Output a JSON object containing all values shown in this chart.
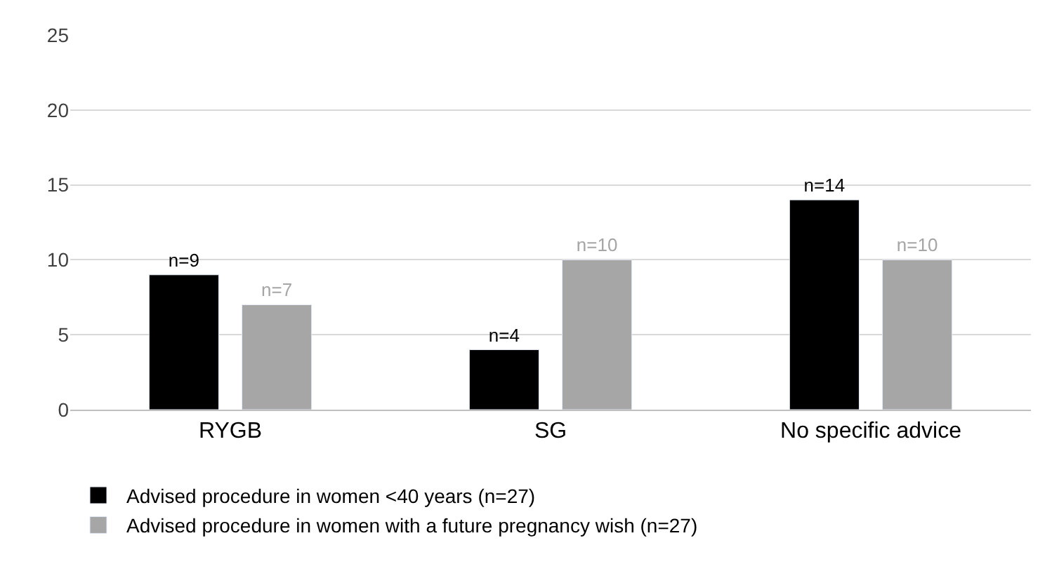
{
  "chart_data": {
    "type": "bar",
    "categories": [
      "RYGB",
      "SG",
      "No specific advice"
    ],
    "series": [
      {
        "name": "Advised procedure in women <40 years (n=27)",
        "color": "#000000",
        "values": [
          9,
          4,
          14
        ],
        "value_labels": [
          "n=9",
          "n=4",
          "n=14"
        ]
      },
      {
        "name": "Advised procedure in women with a future pregnancy wish (n=27)",
        "color": "#a6a6a6",
        "values": [
          7,
          10,
          10
        ],
        "value_labels": [
          "n=7",
          "n=10",
          "n=10"
        ]
      }
    ],
    "ylim": [
      0,
      25
    ],
    "yticks": [
      0,
      5,
      10,
      15,
      20,
      25
    ],
    "grid": "y",
    "legend": "bottom"
  }
}
